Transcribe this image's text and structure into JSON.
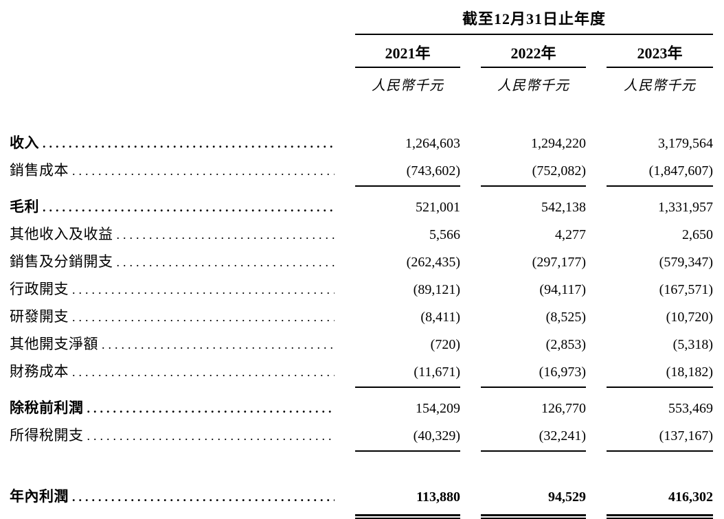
{
  "colors": {
    "background": "#ffffff",
    "text": "#000000",
    "rule": "#000000"
  },
  "table": {
    "period_header": "截至12月31日止年度",
    "columns": [
      {
        "year": "2021年",
        "unit": "人民幣千元"
      },
      {
        "year": "2022年",
        "unit": "人民幣千元"
      },
      {
        "year": "2023年",
        "unit": "人民幣千元"
      }
    ],
    "rows": [
      {
        "label": "收入",
        "values": [
          "1,264,603",
          "1,294,220",
          "3,179,564"
        ],
        "bold_label": true,
        "bold_values": false,
        "rule_after": "none",
        "gap_before": "none"
      },
      {
        "label": "銷售成本",
        "values": [
          "(743,602)",
          "(752,082)",
          "(1,847,607)"
        ],
        "bold_label": false,
        "bold_values": false,
        "rule_after": "single",
        "gap_before": "none"
      },
      {
        "label": "毛利",
        "values": [
          "521,001",
          "542,138",
          "1,331,957"
        ],
        "bold_label": true,
        "bold_values": false,
        "rule_after": "none",
        "gap_before": "none"
      },
      {
        "label": "其他收入及收益",
        "values": [
          "5,566",
          "4,277",
          "2,650"
        ],
        "bold_label": false,
        "bold_values": false,
        "rule_after": "none",
        "gap_before": "none"
      },
      {
        "label": "銷售及分銷開支",
        "values": [
          "(262,435)",
          "(297,177)",
          "(579,347)"
        ],
        "bold_label": false,
        "bold_values": false,
        "rule_after": "none",
        "gap_before": "none"
      },
      {
        "label": "行政開支",
        "values": [
          "(89,121)",
          "(94,117)",
          "(167,571)"
        ],
        "bold_label": false,
        "bold_values": false,
        "rule_after": "none",
        "gap_before": "none"
      },
      {
        "label": "研發開支",
        "values": [
          "(8,411)",
          "(8,525)",
          "(10,720)"
        ],
        "bold_label": false,
        "bold_values": false,
        "rule_after": "none",
        "gap_before": "none"
      },
      {
        "label": "其他開支淨額",
        "values": [
          "(720)",
          "(2,853)",
          "(5,318)"
        ],
        "bold_label": false,
        "bold_values": false,
        "rule_after": "none",
        "gap_before": "none"
      },
      {
        "label": "財務成本",
        "values": [
          "(11,671)",
          "(16,973)",
          "(18,182)"
        ],
        "bold_label": false,
        "bold_values": false,
        "rule_after": "single",
        "gap_before": "none"
      },
      {
        "label": "除稅前利潤",
        "values": [
          "154,209",
          "126,770",
          "553,469"
        ],
        "bold_label": true,
        "bold_values": false,
        "rule_after": "none",
        "gap_before": "none"
      },
      {
        "label": "所得稅開支",
        "values": [
          "(40,329)",
          "(32,241)",
          "(137,167)"
        ],
        "bold_label": false,
        "bold_values": false,
        "rule_after": "single",
        "gap_before": "none"
      },
      {
        "label": "年內利潤",
        "values": [
          "113,880",
          "94,529",
          "416,302"
        ],
        "bold_label": true,
        "bold_values": true,
        "rule_after": "double",
        "gap_before": "large"
      }
    ]
  }
}
